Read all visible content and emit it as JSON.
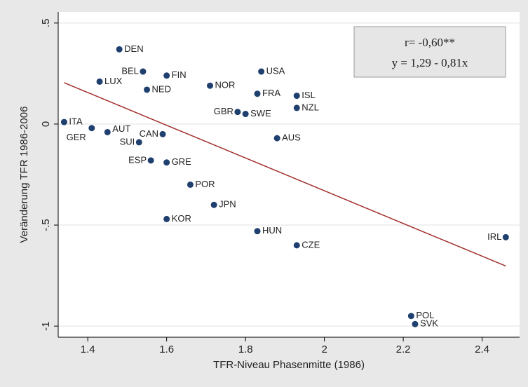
{
  "chart_data": {
    "type": "scatter",
    "xlabel": "TFR-Niveau Phasenmitte (1986)",
    "ylabel": "Veränderung TFR 1986-2006",
    "annotations": [
      "r= -0,60**",
      "y = 1,29 - 0,81x"
    ],
    "xlim": [
      1.325,
      2.495
    ],
    "ylim": [
      -1.055,
      0.555
    ],
    "xticks": [
      1.4,
      1.6,
      1.8,
      2,
      2.2,
      2.4
    ],
    "yticks": [
      {
        "value": 0.5,
        "label": ".5"
      },
      0,
      {
        "value": -0.5,
        "label": "-.5"
      },
      -1
    ],
    "grid": true,
    "color": "#1f3f6e",
    "labels": [
      "DEN",
      "BEL",
      "FIN",
      "LUX",
      "NED",
      "NOR",
      "USA",
      "FRA",
      "ISL",
      "NZL",
      "GBR",
      "SWE",
      "ITA",
      "AUT",
      "GER",
      "CAN",
      "SUI",
      "AUS",
      "ESP",
      "GRE",
      "POR",
      "JPN",
      "KOR",
      "HUN",
      "CZE",
      "IRL",
      "POL",
      "SVK"
    ],
    "x": [
      1.48,
      1.54,
      1.6,
      1.43,
      1.55,
      1.71,
      1.84,
      1.83,
      1.93,
      1.93,
      1.78,
      1.8,
      1.34,
      1.45,
      1.41,
      1.59,
      1.53,
      1.88,
      1.56,
      1.6,
      1.66,
      1.72,
      1.6,
      1.83,
      1.93,
      2.46,
      2.22,
      2.23
    ],
    "values": [
      0.37,
      0.26,
      0.24,
      0.21,
      0.17,
      0.19,
      0.26,
      0.15,
      0.14,
      0.08,
      0.06,
      0.05,
      0.01,
      -0.04,
      -0.02,
      -0.05,
      -0.09,
      -0.07,
      -0.18,
      -0.19,
      -0.3,
      -0.4,
      -0.47,
      -0.53,
      -0.6,
      -0.56,
      -0.95,
      -0.99
    ],
    "fit_line": {
      "x": [
        1.34,
        2.46
      ],
      "values": [
        0.2046,
        -0.7026
      ],
      "color": "#a0302e"
    }
  }
}
